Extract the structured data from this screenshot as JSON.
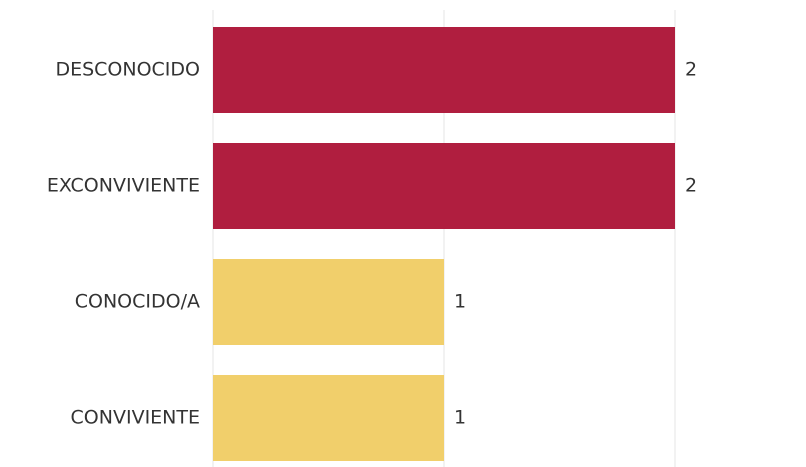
{
  "chart_data": {
    "type": "bar",
    "orientation": "horizontal",
    "categories": [
      "DESCONOCIDO",
      "EXCONVIVIENTE",
      "CONOCIDO/A",
      "CONVIVIENTE"
    ],
    "values": [
      2,
      2,
      1,
      1
    ],
    "colors": [
      "#b01e3f",
      "#b01e3f",
      "#f1cf6b",
      "#f1cf6b"
    ],
    "xlim": [
      0,
      2
    ],
    "grid": true,
    "title": "",
    "xlabel": "",
    "ylabel": ""
  }
}
